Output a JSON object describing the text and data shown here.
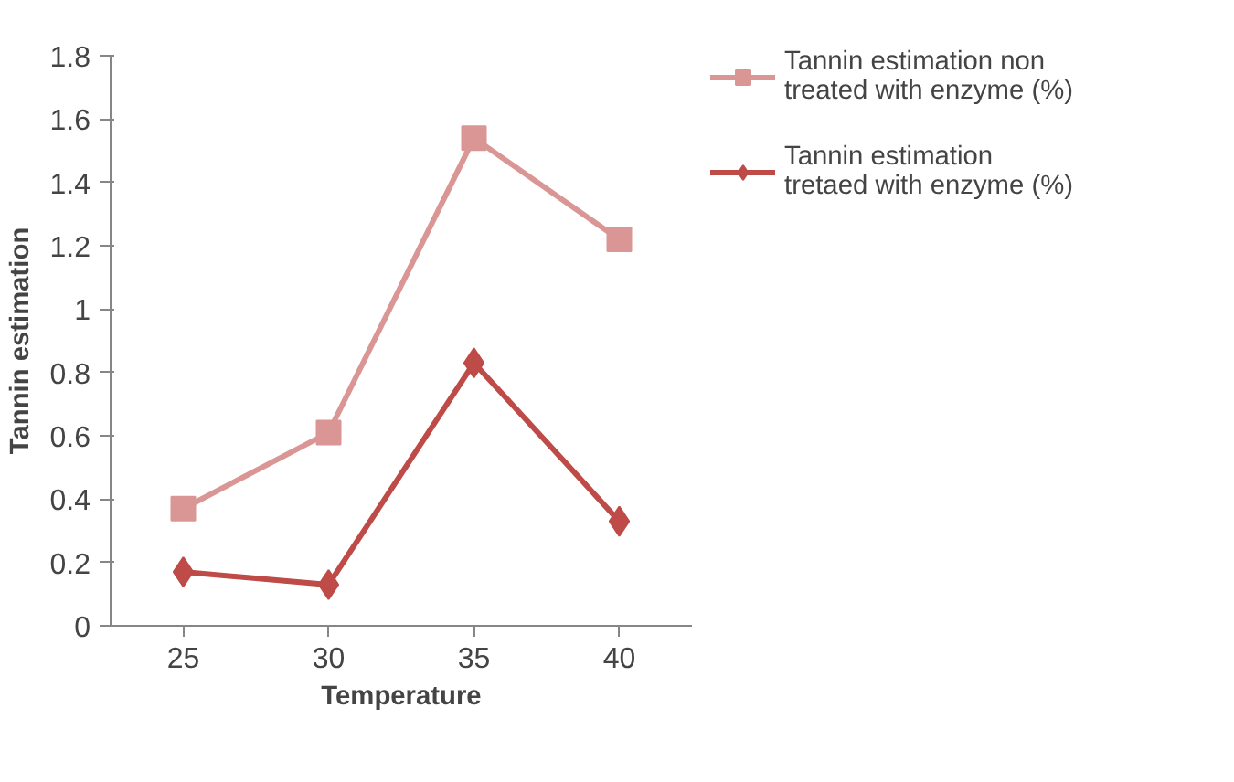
{
  "chart_data": {
    "type": "line",
    "xlabel": "Temperature",
    "ylabel": "Tannin estimation",
    "categories": [
      "25",
      "30",
      "35",
      "40"
    ],
    "series": [
      {
        "name": "Tannin estimation non treated with enzyme (%)",
        "color": "#d99694",
        "marker": "square",
        "values": [
          0.37,
          0.61,
          1.54,
          1.22
        ]
      },
      {
        "name": "Tannin estimation tretaed with enzyme (%)",
        "color": "#be4b48",
        "marker": "diamond",
        "values": [
          0.17,
          0.13,
          0.83,
          0.33
        ]
      }
    ],
    "ylim": [
      0,
      1.8
    ],
    "yticks": [
      0,
      0.2,
      0.4,
      0.6,
      0.8,
      1,
      1.2,
      1.4,
      1.6,
      1.8
    ],
    "grid": false,
    "legend": "right",
    "line_style": "solid"
  }
}
